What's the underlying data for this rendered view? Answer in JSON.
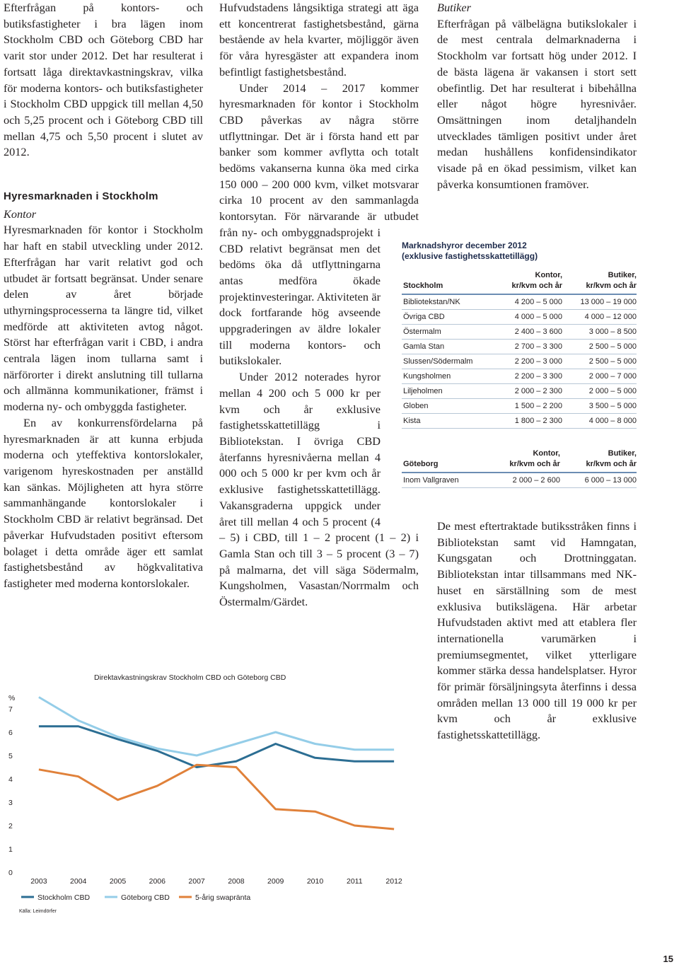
{
  "column1": {
    "paragraphs": [
      "Efterfrågan på kontors- och butiksfastigheter i bra lägen inom Stockholm CBD och Göteborg CBD har varit stor under 2012. Det har resulterat i fortsatt låga direktavkastningskrav, vilka för moderna kontors- och butiksfastigheter i Stockholm CBD uppgick till mellan 4,50 och 5,25 procent och i Göteborg CBD till mellan 4,75 och 5,50 procent i slutet av 2012."
    ],
    "heading": "Hyresmarknaden i Stockholm",
    "subheading": "Kontor",
    "section_paragraphs": [
      "Hyresmarknaden för kontor i Stockholm har haft en stabil utveckling under 2012. Efterfrågan har varit relativt god och utbudet är fortsatt begränsat. Under senare delen av året började uthyrningsprocesserna ta längre tid, vilket medförde att aktiviteten avtog något. Störst har efterfrågan varit i CBD, i andra centrala lägen inom tullarna samt i närförorter i direkt anslutning till tullarna och allmänna kommunikationer, främst i moderna ny- och ombyggda fastigheter.",
      "En av konkurrensfördelarna på hyresmarknaden är att kunna erbjuda moderna och yteffektiva kontorslokaler, varigenom hyreskostnaden per anställd kan sänkas. Möjligheten att hyra större sammanhängande kontorslokaler i Stockholm CBD är relativt begränsad. Det påverkar Hufvudstaden positivt eftersom bolaget i detta område äger ett samlat fastighetsbestånd av högkvalitativa fastigheter med moderna kontorslokaler."
    ]
  },
  "column2": {
    "paragraphs": [
      "Hufvudstadens långsiktiga strategi att äga ett koncentrerat fastighetsbestånd, gärna bestående av hela kvarter, möjliggör även för våra hyresgäster att expandera inom befintligt fastighetsbestånd.",
      "Under 2014 – 2017 kommer hyresmarknaden för kontor i Stockholm CBD påverkas av några större utflyttningar. Det är i första hand ett par banker som kommer avflytta och totalt bedöms vakanserna kunna öka med cirka 150 000 – 200 000 kvm, vilket motsvarar cirka 10 procent av den sammanlagda kontorsytan. För närvarande är utbudet från ny- och ombyggnadsprojekt i CBD relativt begränsat men det bedöms öka då utflyttningarna antas medföra ökade projektinvesteringar. Aktiviteten är dock fortfarande hög avseende uppgraderingen av äldre lokaler till moderna kontors- och butikslokaler.",
      "Under 2012 noterades hyror mellan 4 200 och 5 000 kr per kvm och år exklusive fastighetsskattetillägg i Bibliotekstan. I övriga CBD återfanns hyresnivåerna mellan 4 000 och 5 000 kr per kvm och år exklusive fastighetsskattetillägg. Vakansgraderna uppgick under året till mellan 4 och 5 procent (4 – 5) i CBD, till 1 – 2 procent (1 – 2) i Gamla Stan och till 3 – 5 procent (3 – 7) på malmarna, det vill säga Södermalm, Kungsholmen, Vasastan/Norrmalm och Östermalm/Gärdet."
    ]
  },
  "column3": {
    "subheading": "Butiker",
    "paragraphs": [
      "Efterfrågan på välbelägna butikslokaler i de mest centrala delmarknaderna i Stockholm var fortsatt hög under 2012. I de bästa lägena är vakansen i stort sett obefintlig. Det har resulterat i bibehållna eller något högre hyresnivåer. Omsättningen inom detaljhandeln utvecklades tämligen positivt under året medan hushållens konfidensindikator visade på en ökad pessimism, vilket kan påverka konsumtionen framöver.",
      "De mest eftertraktade butiksstråken finns i Bibliotekstan samt vid Hamngatan, Kungsgatan och Drottninggatan. Bibliotekstan intar tillsammans med NK-huset en särställning som de mest exklusiva butikslägena. Här arbetar Hufvudstaden aktivt med att etablera fler internationella varumärken i premiumsegmentet, vilket ytterligare kommer stärka dessa handelsplatser. Hyror för primär försäljningsyta återfinns i dessa områden mellan 13 000 till 19 000 kr per kvm och år exklusive fastighetsskattetillägg."
    ]
  },
  "table": {
    "title": [
      "Marknadshyror december 2012",
      "(exklusive fastighetsskattetillägg)"
    ],
    "sections": [
      {
        "header": [
          "Stockholm",
          "Kontor,",
          "kr/kvm och år",
          "Butiker,",
          "kr/kvm och år"
        ],
        "rows": [
          [
            "Bibliotekstan/NK",
            "4 200 – 5 000",
            "13 000 – 19 000"
          ],
          [
            "Övriga CBD",
            "4 000 – 5 000",
            "4 000 – 12 000"
          ],
          [
            "Östermalm",
            "2 400 – 3 600",
            "3 000 – 8 500"
          ],
          [
            "Gamla Stan",
            "2 700 – 3 300",
            "2 500 – 5 000"
          ],
          [
            "Slussen/Södermalm",
            "2 200 – 3 000",
            "2 500 – 5 000"
          ],
          [
            "Kungsholmen",
            "2 200 – 3 300",
            "2 000 – 7 000"
          ],
          [
            "Liljeholmen",
            "2 000 – 2 300",
            "2 000 – 5 000"
          ],
          [
            "Globen",
            "1 500 – 2 200",
            "3 500 – 5 000"
          ],
          [
            "Kista",
            "1 800 – 2 300",
            "4 000 – 8 000"
          ]
        ]
      },
      {
        "header": [
          "Göteborg",
          "Kontor,",
          "kr/kvm och år",
          "Butiker,",
          "kr/kvm och år"
        ],
        "rows": [
          [
            "Inom Vallgraven",
            "2 000 – 2 600",
            "6 000 – 13 000"
          ]
        ]
      }
    ]
  },
  "chart_data": {
    "type": "line",
    "title": "Direktavkastningskrav Stockholm CBD och Göteborg CBD",
    "y_label": "%",
    "x": [
      2003,
      2004,
      2005,
      2006,
      2007,
      2008,
      2009,
      2010,
      2011,
      2012
    ],
    "xlim": [
      2002.5,
      2012.5
    ],
    "ylim": [
      0,
      8
    ],
    "yticks": [
      0,
      1,
      2,
      3,
      4,
      5,
      6,
      7
    ],
    "series": [
      {
        "name": "Stockholm CBD",
        "color": "#2c6e93",
        "values": [
          6.25,
          6.25,
          5.7,
          5.2,
          4.5,
          4.75,
          5.5,
          4.9,
          4.75,
          4.75
        ]
      },
      {
        "name": "Göteborg CBD",
        "color": "#94cde8",
        "values": [
          7.5,
          6.5,
          5.8,
          5.3,
          5.0,
          5.5,
          6.0,
          5.5,
          5.25,
          5.25
        ]
      },
      {
        "name": "5-årig swapränta",
        "color": "#e0813a",
        "values": [
          4.4,
          4.1,
          3.1,
          3.7,
          4.6,
          4.5,
          2.7,
          2.6,
          2.0,
          1.85
        ]
      }
    ],
    "source": "Källa: Leimdörfer"
  },
  "page_number": "15"
}
